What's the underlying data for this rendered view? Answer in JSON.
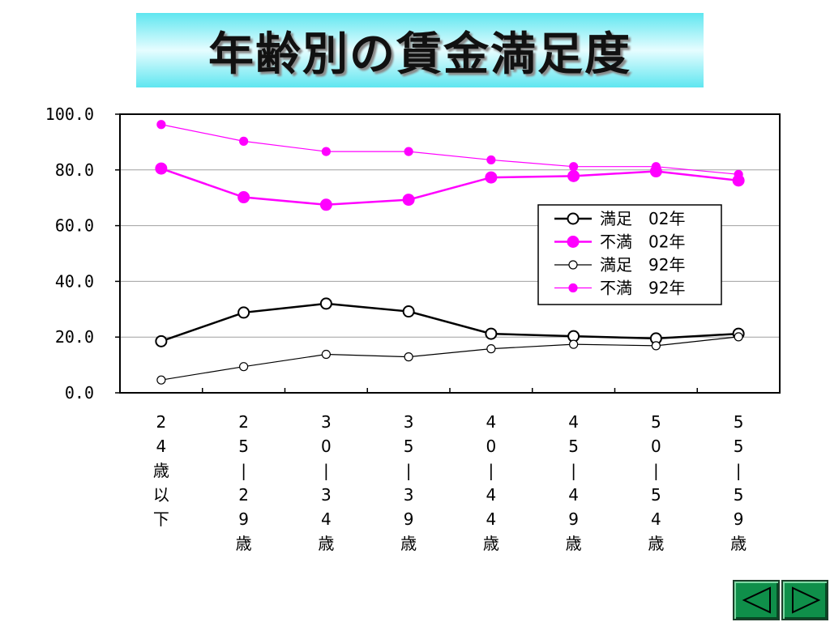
{
  "title": "年齢別の賃金満足度",
  "nav": {
    "prev_icon": "triangle-left-icon",
    "next_icon": "triangle-right-icon",
    "color": "#0f8f4a"
  },
  "chart_data": {
    "type": "line",
    "title": "",
    "xlabel": "",
    "ylabel": "",
    "ylim": [
      0,
      100
    ],
    "yticks": [
      "100.0",
      "80.0",
      "60.0",
      "40.0",
      "20.0",
      "0.0"
    ],
    "categories": [
      "24歳以下",
      "25|29歳",
      "30|34歳",
      "35|39歳",
      "40|44歳",
      "45|49歳",
      "50|54歳",
      "55|59歳"
    ],
    "grid": "horizontal",
    "legend_position": "right",
    "series": [
      {
        "name": "満足　02年",
        "color": "#000000",
        "style": "thick",
        "marker": "open-circle-large",
        "values": [
          18.5,
          28.8,
          32.0,
          29.2,
          21.2,
          20.3,
          19.5,
          21.2
        ]
      },
      {
        "name": "不満　02年",
        "color": "#ff00ff",
        "style": "thick",
        "marker": "filled-circle-large",
        "values": [
          80.5,
          70.2,
          67.5,
          69.3,
          77.3,
          77.8,
          79.5,
          76.2
        ]
      },
      {
        "name": "満足　92年",
        "color": "#000000",
        "style": "thin",
        "marker": "open-circle-small",
        "values": [
          4.6,
          9.4,
          13.8,
          12.9,
          15.8,
          17.4,
          16.9,
          20.1
        ]
      },
      {
        "name": "不満　92年",
        "color": "#ff00ff",
        "style": "thin",
        "marker": "filled-circle-small",
        "values": [
          96.3,
          90.3,
          86.6,
          86.6,
          83.6,
          81.2,
          81.2,
          78.4
        ]
      }
    ]
  }
}
